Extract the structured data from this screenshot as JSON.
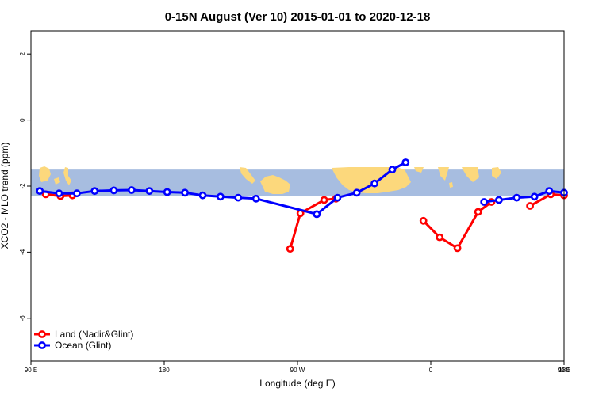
{
  "chart_data": {
    "type": "line",
    "title": "0-15N August (Ver 10)   2015-01-01 to 2020-12-18",
    "xlabel": "Longitude (deg E)",
    "ylabel": "XCO2 - MLO trend (ppm)",
    "xlim": [
      90,
      450
    ],
    "ylim": [
      -7.3,
      2.7
    ],
    "x_ticks": [
      90,
      180,
      270,
      360,
      450,
      540
    ],
    "x_tick_labels": [
      "90 E",
      "180",
      "90 W",
      "0",
      "90 E",
      "180"
    ],
    "y_ticks": [
      -6,
      -4,
      -2,
      0,
      2
    ],
    "y_tick_labels": [
      "-6",
      "-4",
      "-2",
      "0",
      "2"
    ],
    "grid": false,
    "legend_position": "bottom-left",
    "background_map": {
      "latitude_band": "0-15N",
      "y_range": [
        -2.3,
        -1.5
      ],
      "ocean_color": "#a7bde0",
      "land_color": "#fcd87c"
    },
    "series": [
      {
        "name": "Land (Nadir&Glint)",
        "color": "#ff0000",
        "segments": [
          [
            [
              100,
              -2.25
            ],
            [
              110,
              -2.3
            ],
            [
              118,
              -2.28
            ]
          ],
          [
            [
              265,
              -3.9
            ],
            [
              272,
              -2.82
            ],
            [
              288,
              -2.42
            ],
            [
              296,
              -2.38
            ]
          ],
          [
            [
              355,
              -3.05
            ],
            [
              366,
              -3.55
            ],
            [
              378,
              -3.88
            ],
            [
              392,
              -2.78
            ],
            [
              401,
              -2.48
            ]
          ],
          [
            [
              427,
              -2.6
            ],
            [
              441,
              -2.25
            ],
            [
              450,
              -2.28
            ]
          ]
        ]
      },
      {
        "name": "Ocean (Glint)",
        "color": "#0000ff",
        "segments": [
          [
            [
              96,
              -2.15
            ],
            [
              109,
              -2.22
            ],
            [
              121,
              -2.22
            ],
            [
              133,
              -2.15
            ],
            [
              146,
              -2.13
            ],
            [
              158,
              -2.12
            ],
            [
              170,
              -2.15
            ],
            [
              182,
              -2.18
            ],
            [
              194,
              -2.2
            ],
            [
              206,
              -2.28
            ],
            [
              218,
              -2.32
            ],
            [
              230,
              -2.35
            ],
            [
              242,
              -2.38
            ],
            [
              283,
              -2.85
            ],
            [
              297,
              -2.35
            ],
            [
              310,
              -2.2
            ],
            [
              322,
              -1.92
            ],
            [
              334,
              -1.5
            ],
            [
              343,
              -1.28
            ]
          ],
          [
            [
              396,
              -2.48
            ],
            [
              406,
              -2.42
            ],
            [
              418,
              -2.35
            ],
            [
              430,
              -2.32
            ],
            [
              440,
              -2.15
            ],
            [
              450,
              -2.2
            ]
          ]
        ]
      }
    ]
  }
}
